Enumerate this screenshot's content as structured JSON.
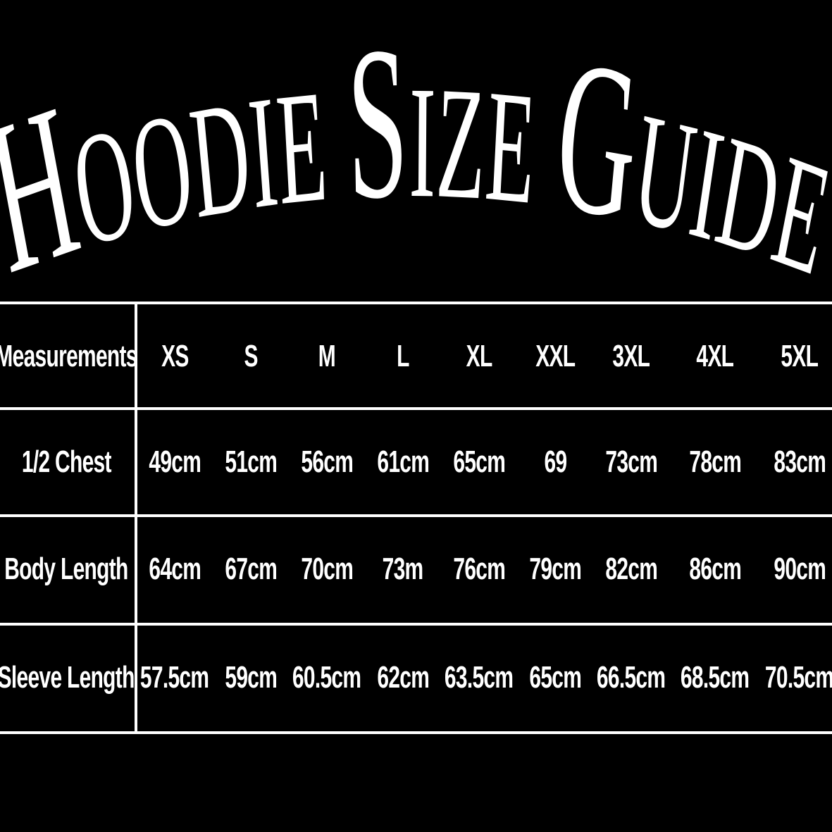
{
  "title": {
    "parts": [
      {
        "cap": "H",
        "rest": "OODIE "
      },
      {
        "cap": "S",
        "rest": "IZE "
      },
      {
        "cap": "G",
        "rest": "UIDE"
      }
    ],
    "text": "Hoodie Size Guide"
  },
  "table": {
    "header": [
      "Measurements",
      "XS",
      "S",
      "M",
      "L",
      "XL",
      "XXL",
      "3XL",
      "4XL",
      "5XL"
    ],
    "rows": [
      [
        "1/2 Chest",
        "49cm",
        "51cm",
        "56cm",
        "61cm",
        "65cm",
        "69",
        "73cm",
        "78cm",
        "83cm"
      ],
      [
        "Body Length",
        "64cm",
        "67cm",
        "70cm",
        "73m",
        "76cm",
        "79cm",
        "82cm",
        "86cm",
        "90cm"
      ],
      [
        "Sleeve Length",
        "57.5cm",
        "59cm",
        "60.5cm",
        "62cm",
        "63.5cm",
        "65cm",
        "66.5cm",
        "68.5cm",
        "70.5cm"
      ]
    ]
  },
  "colors": {
    "background": "#000000",
    "text": "#ffffff",
    "lines": "#ffffff"
  }
}
